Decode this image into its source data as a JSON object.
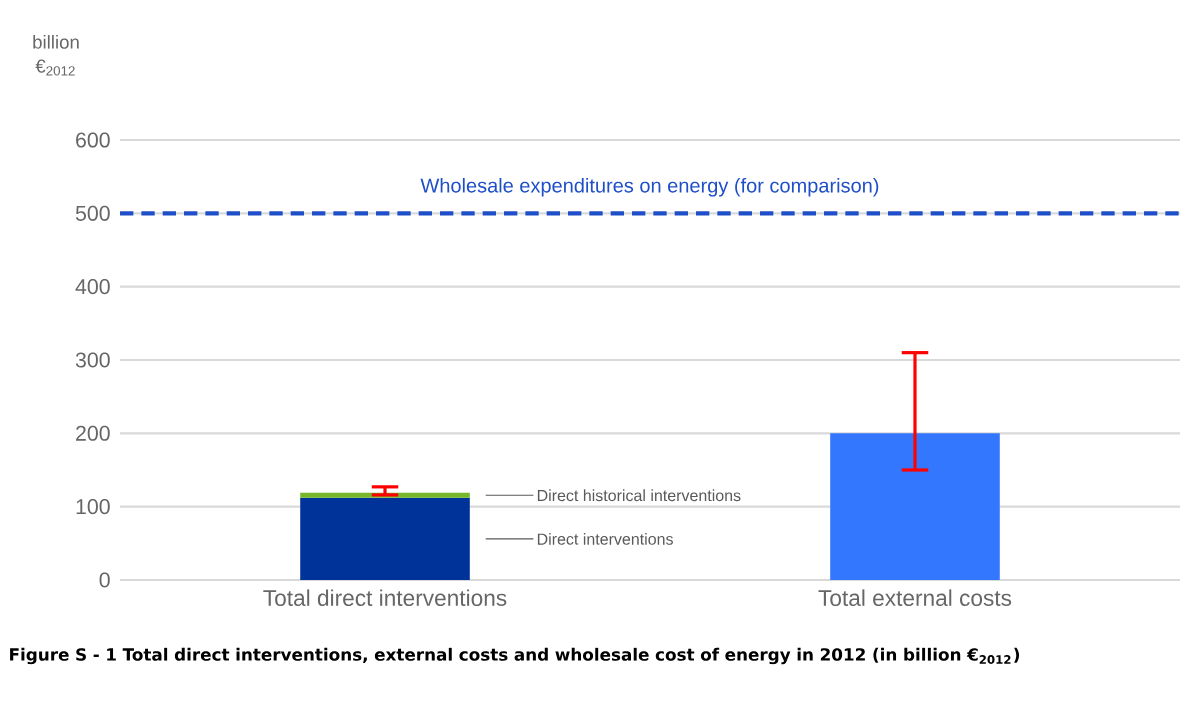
{
  "chart_data": {
    "type": "bar",
    "stacked": true,
    "ylabel": "billion €$_{2012}$",
    "categories": [
      "Total direct interventions",
      "Total external costs"
    ],
    "series": [
      {
        "name": "Direct interventions",
        "color": "#003399",
        "values": [
          112,
          null
        ]
      },
      {
        "name": "Direct historical interventions",
        "color": "#77b82a",
        "values": [
          7,
          null
        ],
        "errors": [
          [
            116,
            127
          ],
          null
        ]
      },
      {
        "color": "#3377ff",
        "values": [
          null,
          200
        ],
        "errors": [
          null,
          [
            150,
            310
          ]
        ]
      }
    ],
    "ylim": [
      0,
      600
    ],
    "yticks": [
      0,
      100,
      200,
      300,
      400,
      500,
      600
    ],
    "grid": "y",
    "legend": false,
    "ref_lines": [
      {
        "axis": "y",
        "value": 500,
        "label": "Wholesale  expenditures on energy (for comparison)",
        "color": "#1f4fc8",
        "line_style": "dashed"
      }
    ],
    "annotations": [
      "Figure S - 1 Total direct interventions, external costs and wholesale cost of energy in 2012 (in billion €$_{2012}$)"
    ]
  }
}
